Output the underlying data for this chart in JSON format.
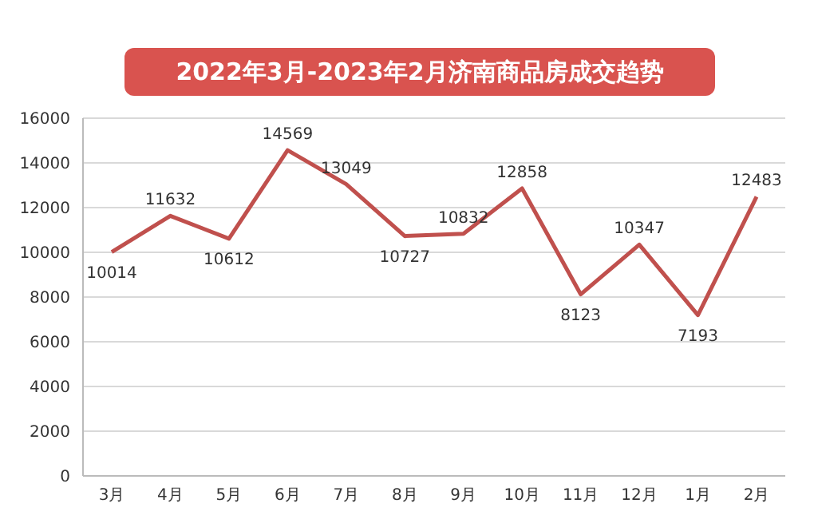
{
  "chart_data": {
    "type": "line",
    "title": "2022年3月-2023年2月济南商品房成交趋势",
    "categories": [
      "3月",
      "4月",
      "5月",
      "6月",
      "7月",
      "8月",
      "9月",
      "10月",
      "11月",
      "12月",
      "1月",
      "2月"
    ],
    "series": [
      {
        "color": "#c0504d",
        "values": [
          10014,
          11632,
          10612,
          14569,
          13049,
          10727,
          10832,
          12858,
          8123,
          10347,
          7193,
          12483
        ]
      }
    ],
    "ylim": [
      0,
      16000
    ],
    "yticks": [
      0,
      2000,
      4000,
      6000,
      8000,
      10000,
      12000,
      14000,
      16000
    ],
    "grid": "y",
    "data_labels": true,
    "marker": "none",
    "line_style": "solid",
    "legend": false
  }
}
